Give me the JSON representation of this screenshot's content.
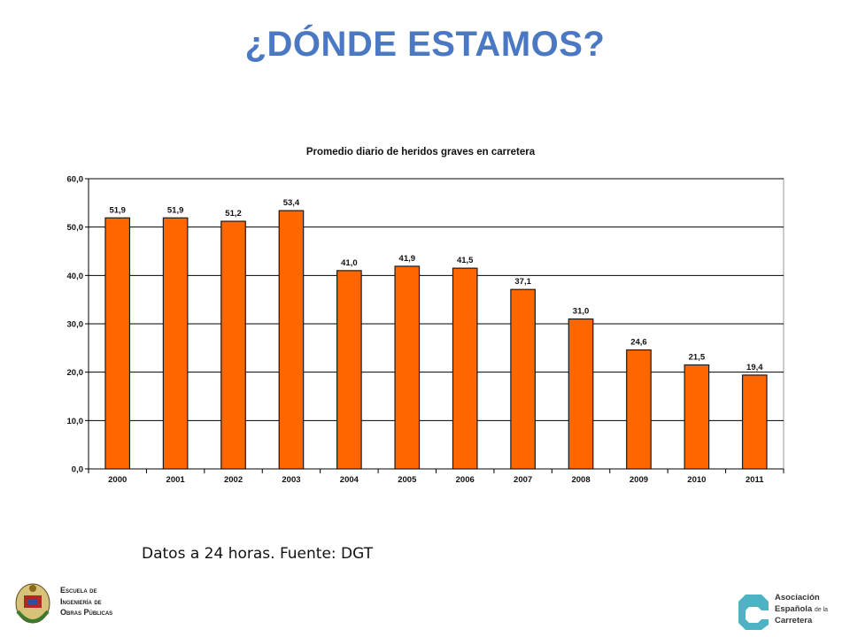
{
  "slide": {
    "title": "¿DÓNDE ESTAMOS?",
    "caption": "Datos a 24 horas. Fuente: DGT"
  },
  "logos": {
    "school_line1": "Escuela de",
    "school_line2": "Ingeniería de",
    "school_line3": "Obras Públicas",
    "assoc_line1": "Asociación",
    "assoc_line2_main": "Española",
    "assoc_line2_small": "de la",
    "assoc_line3": "Carretera"
  },
  "colors": {
    "title": "#4a78c2",
    "bar": "#ff6600",
    "bar_stroke": "#1a1a1a",
    "grid": "#000000",
    "assoc_teal": "#4db3c4"
  },
  "chart_data": {
    "type": "bar",
    "title": "Promedio diario de heridos graves en carretera",
    "categories": [
      "2000",
      "2001",
      "2002",
      "2003",
      "2004",
      "2005",
      "2006",
      "2007",
      "2008",
      "2009",
      "2010",
      "2011"
    ],
    "values": [
      51.9,
      51.9,
      51.2,
      53.4,
      41.0,
      41.9,
      41.5,
      37.1,
      31.0,
      24.6,
      21.5,
      19.4
    ],
    "value_labels": [
      "51,9",
      "51,9",
      "51,2",
      "53,4",
      "41,0",
      "41,9",
      "41,5",
      "37,1",
      "31,0",
      "24,6",
      "21,5",
      "19,4"
    ],
    "yticks": [
      "0,0",
      "10,0",
      "20,0",
      "30,0",
      "40,0",
      "50,0",
      "60,0"
    ],
    "ylim": [
      0,
      60
    ],
    "grid": true,
    "xlabel": "",
    "ylabel": ""
  }
}
